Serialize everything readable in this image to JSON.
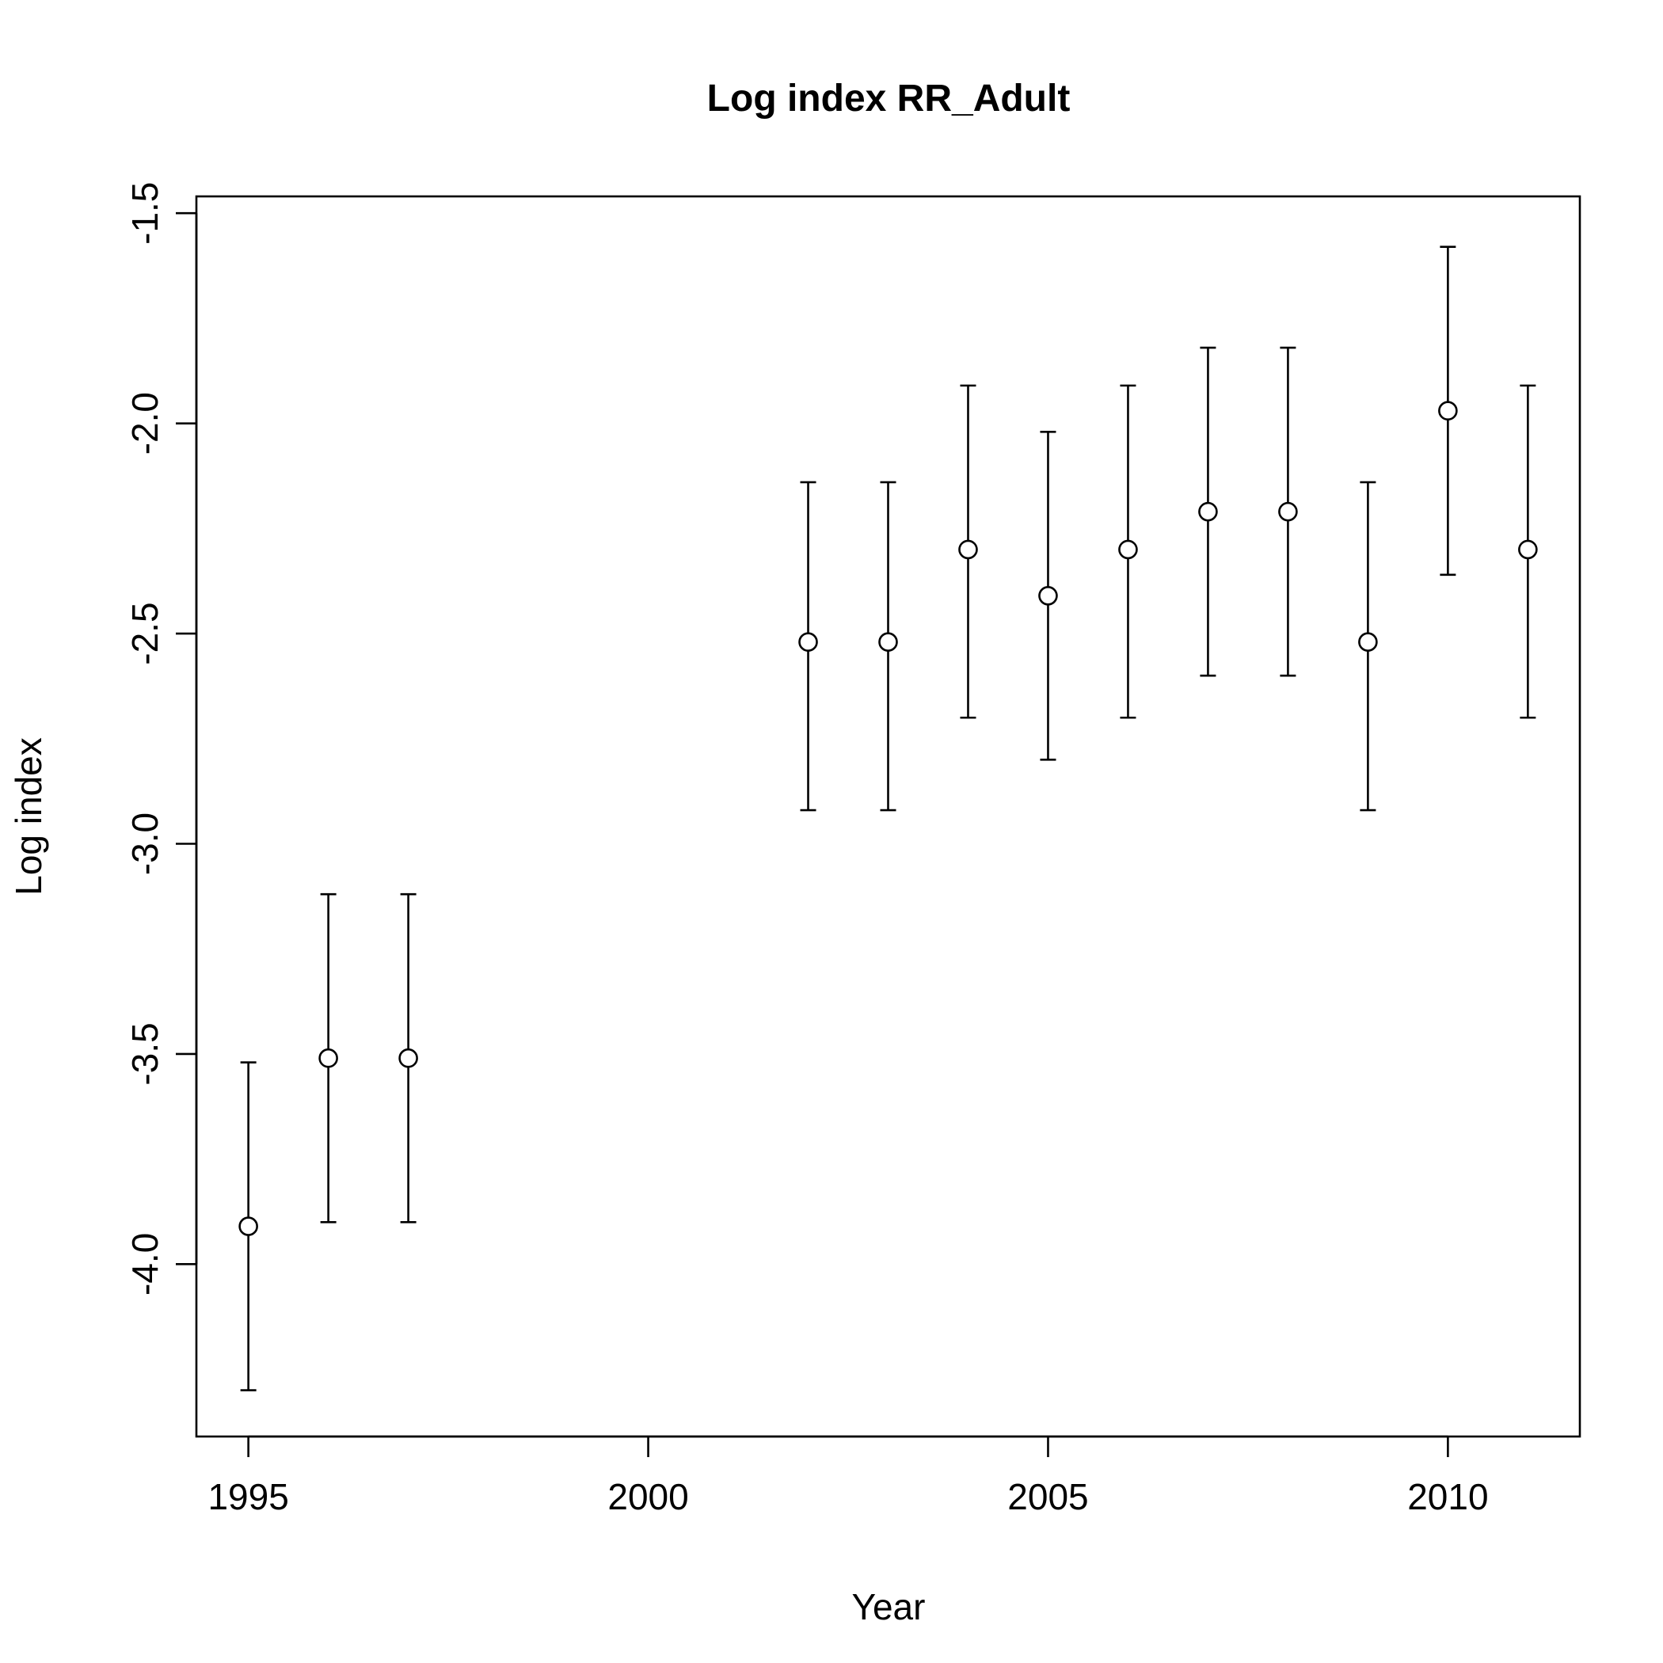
{
  "chart_data": {
    "type": "scatter",
    "title": "Log index RR_Adult",
    "xlabel": "Year",
    "ylabel": "Log index",
    "xlim": [
      1994.35,
      2011.65
    ],
    "ylim": [
      -4.41,
      -1.46
    ],
    "xticks": [
      1995,
      2000,
      2005,
      2010
    ],
    "xtick_labels": [
      "1995",
      "2000",
      "2005",
      "2010"
    ],
    "yticks": [
      -4.0,
      -3.5,
      -3.0,
      -2.5,
      -2.0,
      -1.5
    ],
    "ytick_labels": [
      "-4.0",
      "-3.5",
      "-3.0",
      "-2.5",
      "-2.0",
      "-1.5"
    ],
    "grid": false,
    "legend": "none",
    "marker": "open-circle",
    "error_bars": true,
    "points": [
      {
        "x": 1995,
        "y": -3.91,
        "lower": -4.3,
        "upper": -3.52
      },
      {
        "x": 1996,
        "y": -3.51,
        "lower": -3.9,
        "upper": -3.12
      },
      {
        "x": 1997,
        "y": -3.51,
        "lower": -3.9,
        "upper": -3.12
      },
      {
        "x": 2002,
        "y": -2.52,
        "lower": -2.92,
        "upper": -2.14
      },
      {
        "x": 2003,
        "y": -2.52,
        "lower": -2.92,
        "upper": -2.14
      },
      {
        "x": 2004,
        "y": -2.3,
        "lower": -2.7,
        "upper": -1.91
      },
      {
        "x": 2005,
        "y": -2.41,
        "lower": -2.8,
        "upper": -2.02
      },
      {
        "x": 2006,
        "y": -2.3,
        "lower": -2.7,
        "upper": -1.91
      },
      {
        "x": 2007,
        "y": -2.21,
        "lower": -2.6,
        "upper": -1.82
      },
      {
        "x": 2008,
        "y": -2.21,
        "lower": -2.6,
        "upper": -1.82
      },
      {
        "x": 2009,
        "y": -2.52,
        "lower": -2.92,
        "upper": -2.14
      },
      {
        "x": 2010,
        "y": -1.97,
        "lower": -2.36,
        "upper": -1.58
      },
      {
        "x": 2011,
        "y": -2.3,
        "lower": -2.7,
        "upper": -1.91
      }
    ]
  }
}
